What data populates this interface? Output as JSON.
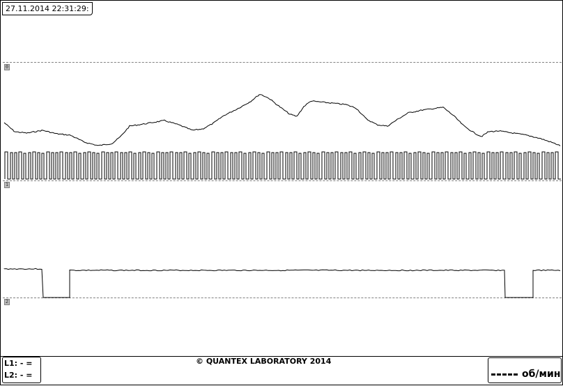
{
  "timestamp": "27.11.2014 22:31:29:",
  "channel_markers": [
    "0",
    "1",
    "2"
  ],
  "readout": {
    "l1": "L1:  -  =",
    "l2": "L2:  -  ="
  },
  "copyright": "© QUANTEX LABORATORY 2014",
  "legend": {
    "unit": "об/мин",
    "line_style": "dashed"
  },
  "colors": {
    "background": "#ffffff",
    "trace": "#000000",
    "reference_lines": "#808080"
  }
}
